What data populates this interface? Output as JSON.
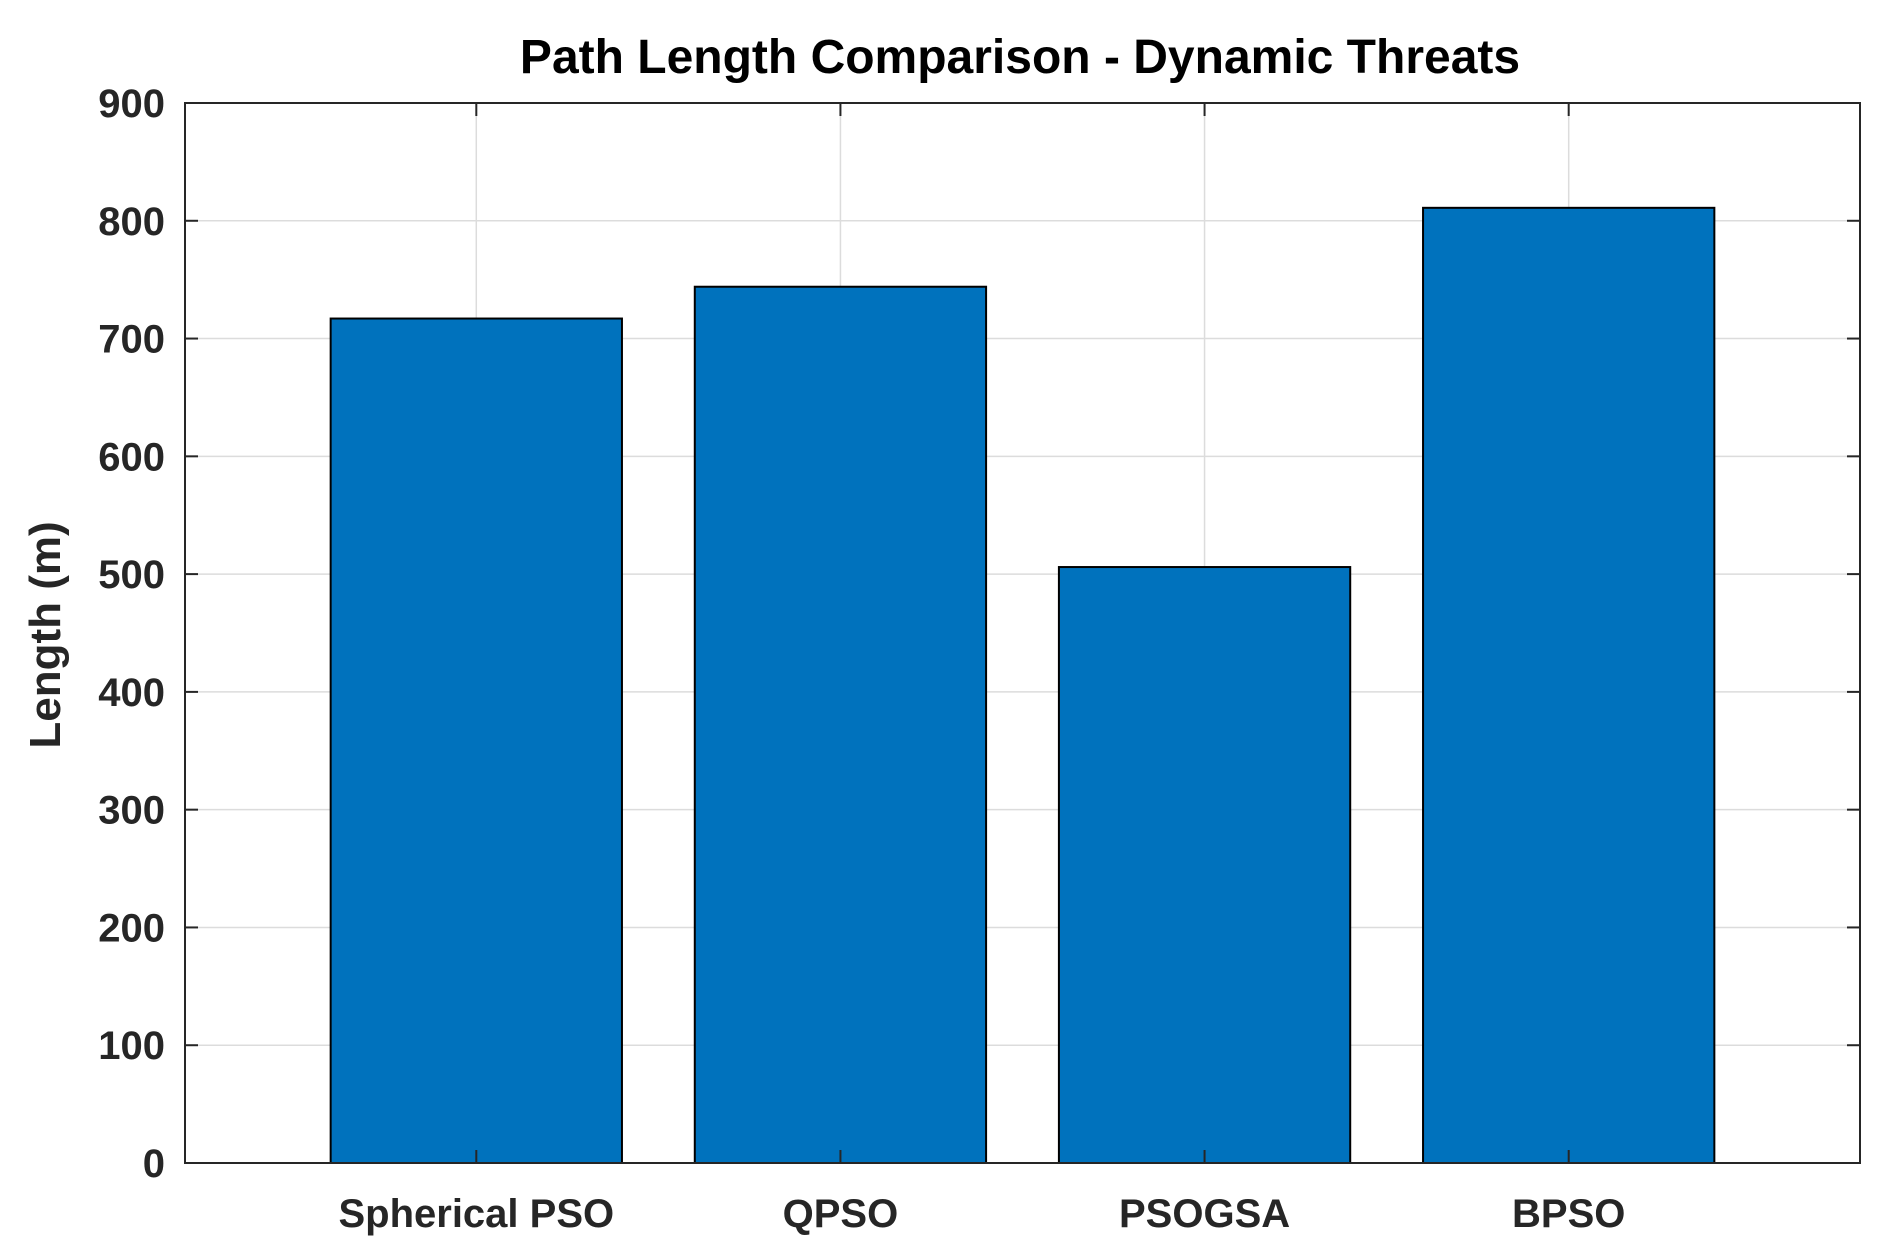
{
  "chart_data": {
    "type": "bar",
    "title": "Path Length Comparison - Dynamic Threats",
    "xlabel": "",
    "ylabel": "Length (m)",
    "categories": [
      "Spherical PSO",
      "QPSO",
      "PSOGSA",
      "BPSO"
    ],
    "values": [
      717,
      744,
      506,
      811
    ],
    "ylim": [
      0,
      900
    ],
    "yticks": [
      0,
      100,
      200,
      300,
      400,
      500,
      600,
      700,
      800,
      900
    ],
    "ytick_labels": [
      "0",
      "100",
      "200",
      "300",
      "400",
      "500",
      "600",
      "700",
      "800",
      "900"
    ],
    "xlim": [
      0.2,
      4.8
    ],
    "grid": true,
    "legend": "none",
    "colors": {
      "bar_fill": "#0072BD",
      "bar_edge": "#000000",
      "grid": "#dcdcdc",
      "axes": "#262626"
    }
  }
}
